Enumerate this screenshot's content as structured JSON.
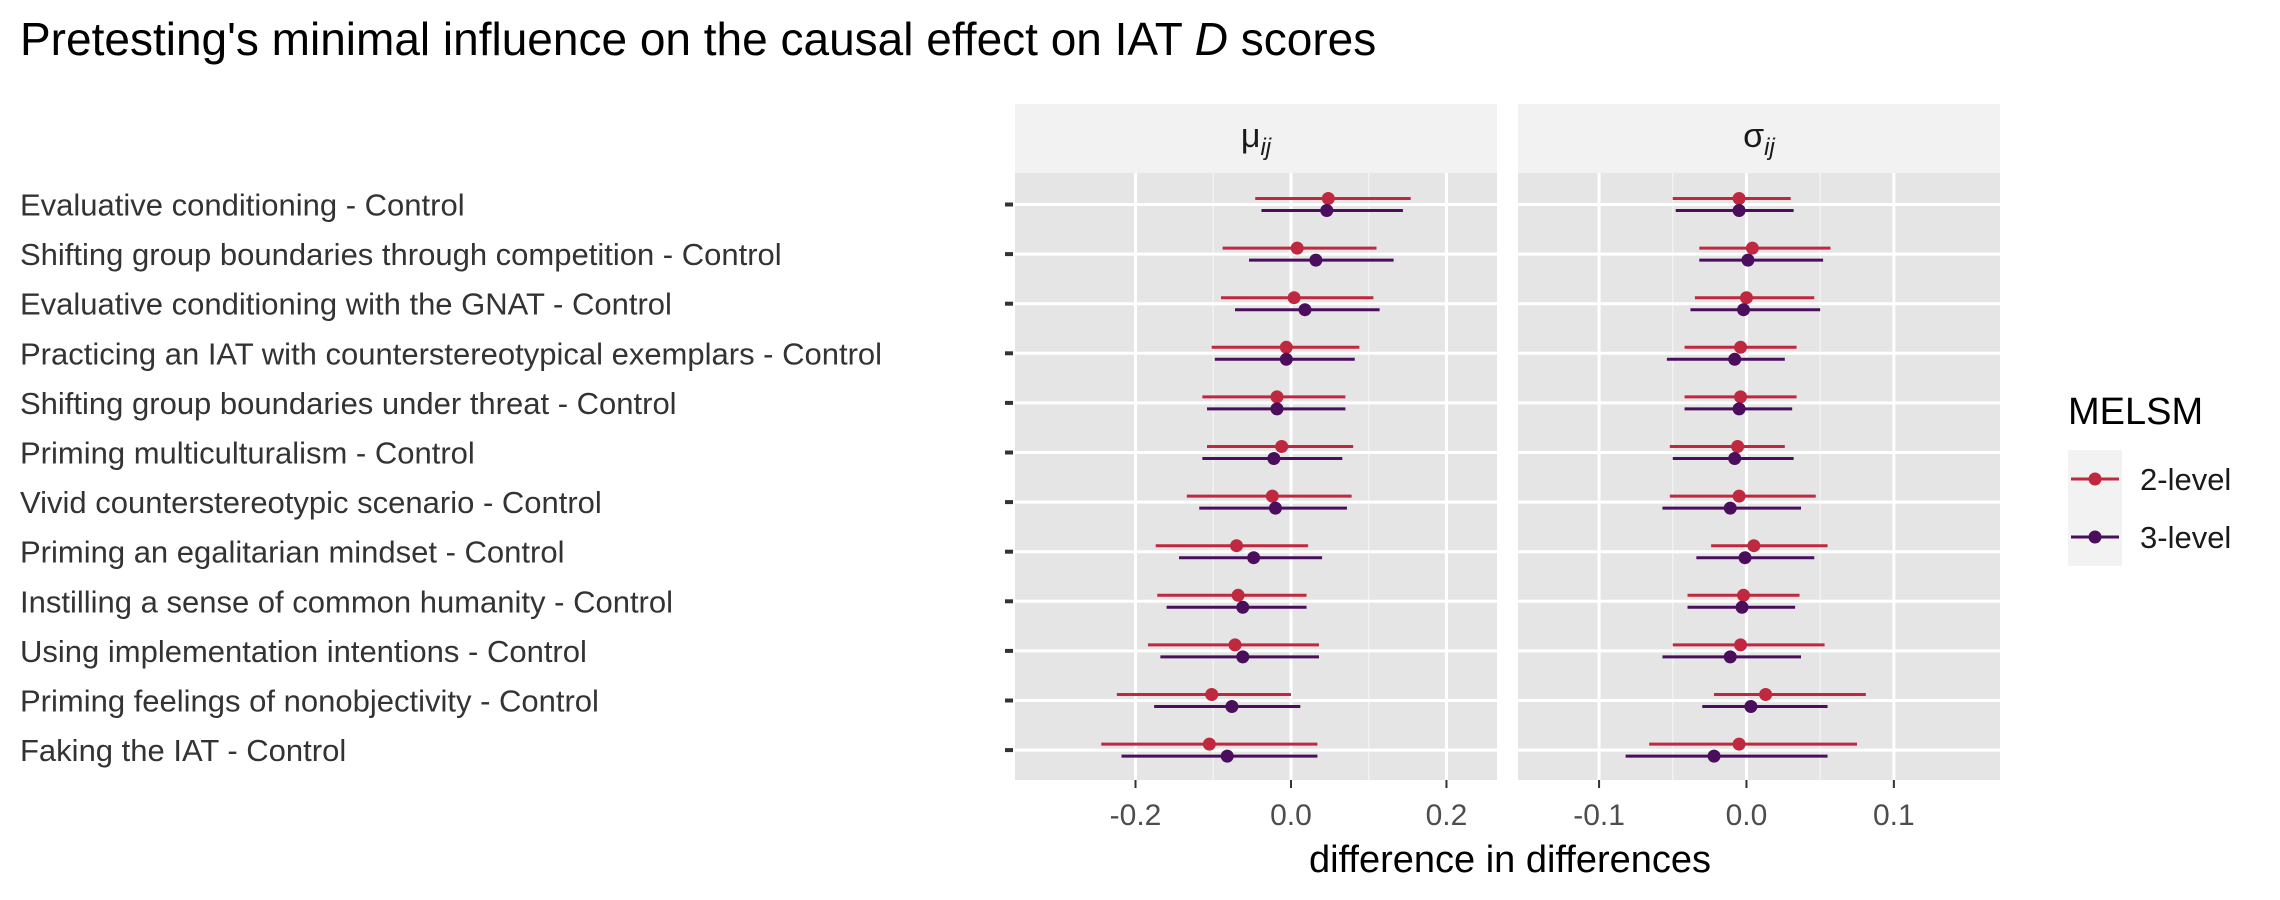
{
  "chart_data": {
    "type": "dot-and-interval",
    "title": {
      "prefix": "Pretesting's minimal influence on the causal effect on IAT ",
      "italic": "D",
      "suffix": " scores"
    },
    "xlabel": "difference in differences",
    "categories": [
      "Evaluative conditioning - Control",
      "Shifting group boundaries through competition - Control",
      "Evaluative conditioning with the GNAT - Control",
      "Practicing an IAT with counterstereotypical exemplars - Control",
      "Shifting group boundaries under threat - Control",
      "Priming multiculturalism - Control",
      "Vivid counterstereotypic scenario - Control",
      "Priming an egalitarian mindset - Control",
      "Instilling a sense of common humanity - Control",
      "Using implementation intentions - Control",
      "Priming feelings of nonobjectivity - Control",
      "Faking the IAT - Control"
    ],
    "legend": {
      "title": "MELSM",
      "position": "right",
      "items": [
        {
          "name": "2-level",
          "color": "#C0283F"
        },
        {
          "name": "3-level",
          "color": "#4A0E5C"
        }
      ]
    },
    "panels": [
      {
        "strip": {
          "symbol": "μ",
          "subscript": "ij"
        },
        "xlim": [
          -0.355,
          0.265
        ],
        "ticks": [
          -0.2,
          0.0,
          0.2
        ],
        "tick_labels": [
          "-0.2",
          "0.0",
          "0.2"
        ],
        "series": [
          {
            "name": "2-level",
            "est": [
              0.048,
              0.008,
              0.004,
              -0.006,
              -0.018,
              -0.012,
              -0.024,
              -0.07,
              -0.068,
              -0.072,
              -0.102,
              -0.105
            ],
            "lower": [
              -0.046,
              -0.088,
              -0.09,
              -0.102,
              -0.114,
              -0.108,
              -0.134,
              -0.174,
              -0.172,
              -0.184,
              -0.224,
              -0.244
            ],
            "upper": [
              0.154,
              0.11,
              0.106,
              0.088,
              0.07,
              0.08,
              0.078,
              0.022,
              0.02,
              0.036,
              0.0,
              0.034
            ]
          },
          {
            "name": "3-level",
            "est": [
              0.046,
              0.032,
              0.018,
              -0.006,
              -0.018,
              -0.022,
              -0.02,
              -0.048,
              -0.062,
              -0.062,
              -0.076,
              -0.082
            ],
            "lower": [
              -0.038,
              -0.054,
              -0.072,
              -0.098,
              -0.108,
              -0.114,
              -0.118,
              -0.144,
              -0.16,
              -0.168,
              -0.176,
              -0.218
            ],
            "upper": [
              0.144,
              0.132,
              0.114,
              0.082,
              0.07,
              0.066,
              0.072,
              0.04,
              0.02,
              0.036,
              0.012,
              0.034
            ]
          }
        ]
      },
      {
        "strip": {
          "symbol": "σ",
          "subscript": "ij"
        },
        "xlim": [
          -0.155,
          0.172
        ],
        "ticks": [
          -0.1,
          0.0,
          0.1
        ],
        "tick_labels": [
          "-0.1",
          "0.0",
          "0.1"
        ],
        "series": [
          {
            "name": "2-level",
            "est": [
              -0.005,
              0.004,
              0.0,
              -0.004,
              -0.004,
              -0.006,
              -0.005,
              0.005,
              -0.002,
              -0.004,
              0.013,
              -0.005
            ],
            "lower": [
              -0.05,
              -0.032,
              -0.035,
              -0.042,
              -0.042,
              -0.052,
              -0.052,
              -0.024,
              -0.04,
              -0.05,
              -0.022,
              -0.066
            ],
            "upper": [
              0.03,
              0.057,
              0.046,
              0.034,
              0.034,
              0.026,
              0.047,
              0.055,
              0.036,
              0.053,
              0.081,
              0.075
            ]
          },
          {
            "name": "3-level",
            "est": [
              -0.005,
              0.001,
              -0.002,
              -0.008,
              -0.005,
              -0.008,
              -0.011,
              -0.001,
              -0.003,
              -0.011,
              0.003,
              -0.022
            ],
            "lower": [
              -0.048,
              -0.032,
              -0.038,
              -0.054,
              -0.042,
              -0.05,
              -0.057,
              -0.034,
              -0.04,
              -0.057,
              -0.03,
              -0.082
            ],
            "upper": [
              0.032,
              0.052,
              0.05,
              0.026,
              0.031,
              0.032,
              0.037,
              0.046,
              0.033,
              0.037,
              0.055,
              0.055
            ]
          }
        ]
      }
    ]
  }
}
